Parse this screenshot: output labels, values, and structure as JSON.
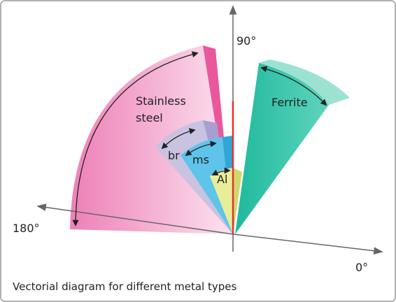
{
  "axes": {
    "y_label": "90°",
    "x_neg_label": "180°",
    "x_label": "0°"
  },
  "sectors": {
    "stainless_steel": [
      "Stainless",
      "steel"
    ],
    "ferrite": "Ferrite",
    "brass": "br",
    "mild_steel": "ms",
    "aluminium": "Al"
  },
  "caption": "Vectorial diagram for different metal types"
}
